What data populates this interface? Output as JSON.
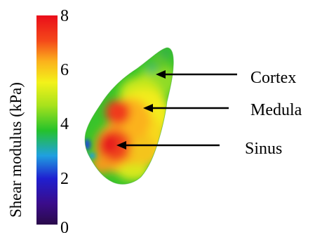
{
  "colorbar": {
    "label": "Shear modulus (kPa)",
    "min": 0,
    "max": 8,
    "ticks": [
      "0",
      "2",
      "4",
      "6",
      "8"
    ],
    "colormap": [
      "#2a0a4a",
      "#1f1fd0",
      "#1fa0e0",
      "#25c22b",
      "#a8e21c",
      "#f3f21a",
      "#fbb21c",
      "#f4481a",
      "#ea0d1a"
    ]
  },
  "annotations": [
    {
      "label": "Cortex"
    },
    {
      "label": "Medula"
    },
    {
      "label": "Sinus"
    }
  ]
}
